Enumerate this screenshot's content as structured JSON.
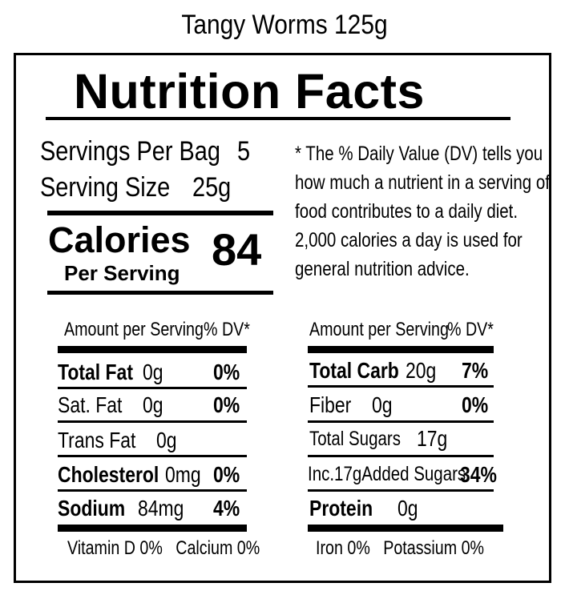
{
  "product": {
    "title": "Tangy Worms 125g"
  },
  "label": {
    "heading": "Nutrition Facts",
    "servings_per_bag_label": "Servings Per Bag",
    "servings_per_bag_value": "5",
    "serving_size_label": "Serving Size",
    "serving_size_value": "25g",
    "calories_label": "Calories",
    "calories_sublabel": "Per Serving",
    "calories_value": "84",
    "dv_note": [
      "* The % Daily Value (DV) tells you",
      "how much a nutrient in a serving of",
      "food contributes to a daily diet.",
      "2,000 calories a day is used for",
      "general nutrition advice."
    ],
    "left_table": {
      "header_amount": "Amount per Serving",
      "header_dv": "% DV*",
      "rows": [
        {
          "name": "Total Fat",
          "amount": "0g",
          "dv": "0%"
        },
        {
          "name": "Sat. Fat",
          "amount": "0g",
          "dv": "0%"
        },
        {
          "name": "Trans Fat",
          "amount": "0g",
          "dv": ""
        },
        {
          "name": "Cholesterol",
          "amount": "0mg",
          "dv": "0%"
        },
        {
          "name": "Sodium",
          "amount": "84mg",
          "dv": "4%"
        }
      ],
      "footer": "Vitamin D 0%   Calcium 0%"
    },
    "right_table": {
      "header_amount": "Amount per Serving",
      "header_dv": "% DV*",
      "rows": [
        {
          "name": "Total Carb",
          "amount": "20g",
          "dv": "7%"
        },
        {
          "name": "Fiber",
          "amount": "0g",
          "dv": "0%"
        },
        {
          "name": "Total Sugars",
          "amount": "17g",
          "dv": ""
        },
        {
          "name": "Inc.17gAdded Sugars",
          "amount": "",
          "dv": "34%"
        },
        {
          "name": "Protein",
          "amount": "0g",
          "dv": ""
        }
      ],
      "footer": "Iron 0%   Potassium 0%"
    }
  }
}
